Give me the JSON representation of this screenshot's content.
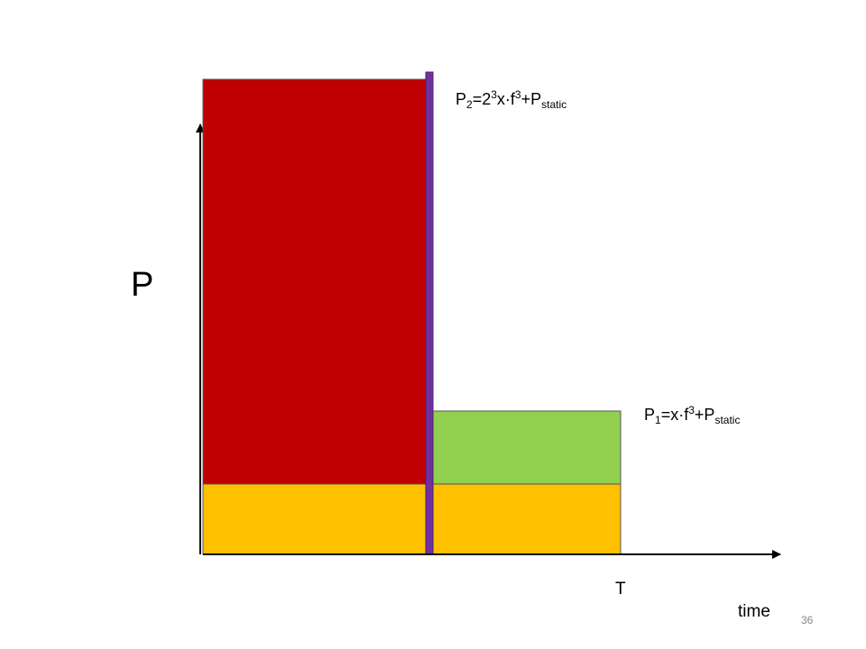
{
  "axis_label_y": "P",
  "axis_label_x": "time",
  "tick_label": "T",
  "formula_2": {
    "parts": [
      "P",
      "2",
      "=2",
      "3",
      "x·f",
      "3",
      "+P",
      "static"
    ]
  },
  "formula_1": {
    "parts": [
      "P",
      "1",
      "=x·f",
      "3",
      "+P",
      "static"
    ]
  },
  "page_number": "36"
}
